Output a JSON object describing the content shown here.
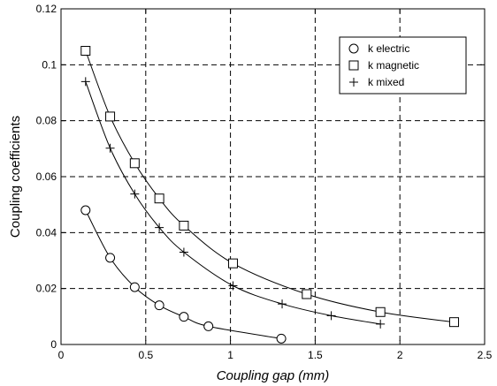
{
  "chart_data": {
    "type": "line",
    "title": "",
    "xlabel": "Coupling gap (mm)",
    "ylabel": "Coupling coefficients",
    "xlim": [
      0,
      2.5
    ],
    "ylim": [
      0,
      0.12
    ],
    "xticks": [
      0,
      0.5,
      1,
      1.5,
      2,
      2.5
    ],
    "xtick_labels": [
      "0",
      "0.5",
      "1",
      "1.5",
      "2",
      "2.5"
    ],
    "yticks": [
      0,
      0.02,
      0.04,
      0.06,
      0.08,
      0.1,
      0.12
    ],
    "ytick_labels": [
      "0",
      "0.02",
      "0.04",
      "0.06",
      "0.08",
      "0.1",
      "0.12"
    ],
    "grid": true,
    "legend_position": "top-right",
    "series": [
      {
        "name": "k electric",
        "marker": "circle",
        "color": "#000000",
        "points": [
          [
            0.145,
            0.048
          ],
          [
            0.29,
            0.031
          ],
          [
            0.435,
            0.0205
          ],
          [
            0.58,
            0.014
          ],
          [
            0.725,
            0.0099
          ],
          [
            0.87,
            0.0065
          ],
          [
            1.3,
            0.0021
          ]
        ]
      },
      {
        "name": "k magnetic",
        "marker": "square",
        "color": "#000000",
        "points": [
          [
            0.145,
            0.105
          ],
          [
            0.29,
            0.0815
          ],
          [
            0.435,
            0.0648
          ],
          [
            0.58,
            0.0522
          ],
          [
            0.725,
            0.0425
          ],
          [
            1.015,
            0.029
          ],
          [
            1.45,
            0.018
          ],
          [
            1.885,
            0.0116
          ],
          [
            2.32,
            0.008
          ]
        ]
      },
      {
        "name": "k mixed",
        "marker": "plus",
        "color": "#000000",
        "points": [
          [
            0.145,
            0.094
          ],
          [
            0.29,
            0.0702
          ],
          [
            0.435,
            0.0538
          ],
          [
            0.58,
            0.0418
          ],
          [
            0.725,
            0.033
          ],
          [
            1.015,
            0.021
          ],
          [
            1.305,
            0.0145
          ],
          [
            1.595,
            0.0103
          ],
          [
            1.885,
            0.0073
          ]
        ]
      }
    ]
  }
}
